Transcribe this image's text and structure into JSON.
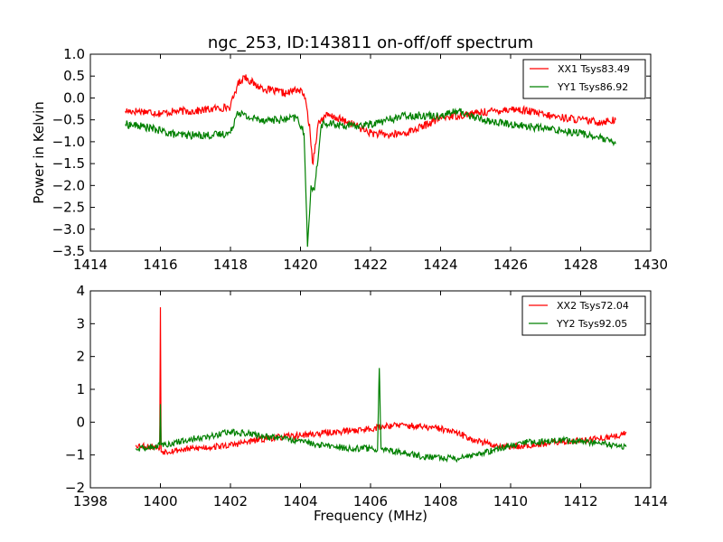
{
  "chart_data": [
    {
      "type": "line",
      "title": "ngc_253, ID:143811 on-off/off spectrum",
      "xlabel": "",
      "ylabel": "Power in Kelvin",
      "xlim": [
        1414,
        1430
      ],
      "ylim": [
        -3.5,
        1.0
      ],
      "xticks": [
        1414,
        1416,
        1418,
        1420,
        1422,
        1424,
        1426,
        1428,
        1430
      ],
      "yticks": [
        1.0,
        0.5,
        0.0,
        -0.5,
        -1.0,
        -1.5,
        -2.0,
        -2.5,
        -3.0,
        -3.5
      ],
      "xtick_labels": [
        "1414",
        "1416",
        "1418",
        "1420",
        "1422",
        "1424",
        "1426",
        "1428",
        "1430"
      ],
      "ytick_labels": [
        "1.0",
        "0.5",
        "0.0",
        "−0.5",
        "−1.0",
        "−1.5",
        "−2.0",
        "−2.5",
        "−3.0",
        "−3.5"
      ],
      "legend": "top-right",
      "series": [
        {
          "name": "XX1 Tsys83.49",
          "color": "#ff0000",
          "x": [
            1415.0,
            1415.5,
            1416.0,
            1416.5,
            1417.0,
            1417.5,
            1418.0,
            1418.2,
            1418.4,
            1418.7,
            1419.0,
            1419.3,
            1419.6,
            1419.9,
            1420.1,
            1420.25,
            1420.35,
            1420.5,
            1420.7,
            1421.0,
            1421.5,
            1422.0,
            1422.5,
            1423.0,
            1423.5,
            1424.0,
            1424.5,
            1425.0,
            1425.5,
            1426.0,
            1426.5,
            1427.0,
            1427.5,
            1428.0,
            1428.5,
            1429.0
          ],
          "values": [
            -0.3,
            -0.3,
            -0.35,
            -0.3,
            -0.3,
            -0.25,
            -0.2,
            0.3,
            0.5,
            0.3,
            0.2,
            0.15,
            0.1,
            0.2,
            0.1,
            -0.6,
            -1.5,
            -0.6,
            -0.4,
            -0.45,
            -0.6,
            -0.8,
            -0.85,
            -0.8,
            -0.65,
            -0.45,
            -0.4,
            -0.35,
            -0.3,
            -0.25,
            -0.3,
            -0.4,
            -0.45,
            -0.5,
            -0.55,
            -0.5
          ],
          "noise": 0.09
        },
        {
          "name": "YY1 Tsys86.92",
          "color": "#008000",
          "x": [
            1415.0,
            1415.5,
            1416.0,
            1416.5,
            1417.0,
            1417.5,
            1418.0,
            1418.2,
            1418.5,
            1419.0,
            1419.5,
            1419.9,
            1420.1,
            1420.2,
            1420.3,
            1420.4,
            1420.6,
            1421.0,
            1421.5,
            1422.0,
            1422.5,
            1423.0,
            1423.5,
            1424.0,
            1424.5,
            1425.0,
            1425.5,
            1426.0,
            1426.5,
            1427.0,
            1427.5,
            1428.0,
            1428.5,
            1429.0
          ],
          "values": [
            -0.6,
            -0.65,
            -0.75,
            -0.85,
            -0.85,
            -0.85,
            -0.8,
            -0.3,
            -0.45,
            -0.5,
            -0.5,
            -0.45,
            -0.8,
            -3.4,
            -2.0,
            -2.1,
            -0.6,
            -0.6,
            -0.65,
            -0.6,
            -0.5,
            -0.4,
            -0.4,
            -0.4,
            -0.3,
            -0.45,
            -0.55,
            -0.6,
            -0.65,
            -0.7,
            -0.75,
            -0.8,
            -0.9,
            -1.05
          ],
          "noise": 0.09
        }
      ]
    },
    {
      "type": "line",
      "title": "",
      "xlabel": "Frequency (MHz)",
      "ylabel": "",
      "xlim": [
        1398,
        1414
      ],
      "ylim": [
        -2,
        4
      ],
      "xticks": [
        1398,
        1400,
        1402,
        1404,
        1406,
        1408,
        1410,
        1412,
        1414
      ],
      "yticks": [
        4,
        3,
        2,
        1,
        0,
        -1,
        -2
      ],
      "xtick_labels": [
        "1398",
        "1400",
        "1402",
        "1404",
        "1406",
        "1408",
        "1410",
        "1412",
        "1414"
      ],
      "ytick_labels": [
        "4",
        "3",
        "2",
        "1",
        "0",
        "−1",
        "−2"
      ],
      "legend": "top-right",
      "series": [
        {
          "name": "XX2 Tsys72.04",
          "color": "#ff0000",
          "x": [
            1399.3,
            1399.8,
            1399.98,
            1400.0,
            1400.02,
            1400.5,
            1401.0,
            1401.5,
            1402.0,
            1402.5,
            1403.0,
            1403.5,
            1404.0,
            1404.5,
            1405.0,
            1405.5,
            1406.0,
            1406.5,
            1407.0,
            1407.5,
            1408.0,
            1408.5,
            1409.0,
            1409.5,
            1410.0,
            1410.5,
            1411.0,
            1411.5,
            1412.0,
            1412.5,
            1413.0,
            1413.3
          ],
          "values": [
            -0.7,
            -0.75,
            -0.8,
            3.5,
            -0.9,
            -0.85,
            -0.8,
            -0.75,
            -0.7,
            -0.6,
            -0.5,
            -0.45,
            -0.4,
            -0.35,
            -0.3,
            -0.25,
            -0.2,
            -0.1,
            -0.1,
            -0.15,
            -0.2,
            -0.35,
            -0.55,
            -0.7,
            -0.75,
            -0.7,
            -0.65,
            -0.6,
            -0.55,
            -0.5,
            -0.45,
            -0.3
          ],
          "noise": 0.1
        },
        {
          "name": "YY2 Tsys92.05",
          "color": "#008000",
          "x": [
            1399.3,
            1399.8,
            1399.98,
            1400.0,
            1400.02,
            1400.5,
            1401.0,
            1401.5,
            1402.0,
            1402.5,
            1403.0,
            1403.5,
            1404.0,
            1404.5,
            1405.0,
            1405.5,
            1406.0,
            1406.2,
            1406.25,
            1406.3,
            1406.5,
            1407.0,
            1407.5,
            1408.0,
            1408.5,
            1409.0,
            1409.5,
            1410.0,
            1410.5,
            1411.0,
            1411.5,
            1412.0,
            1412.5,
            1413.0,
            1413.3
          ],
          "values": [
            -0.8,
            -0.75,
            -0.7,
            0.55,
            -0.7,
            -0.6,
            -0.5,
            -0.4,
            -0.3,
            -0.35,
            -0.45,
            -0.5,
            -0.6,
            -0.7,
            -0.75,
            -0.8,
            -0.8,
            -0.85,
            1.65,
            -0.8,
            -0.85,
            -0.95,
            -1.05,
            -1.1,
            -1.1,
            -1.0,
            -0.85,
            -0.7,
            -0.6,
            -0.6,
            -0.55,
            -0.6,
            -0.65,
            -0.7,
            -0.75
          ],
          "noise": 0.1
        }
      ]
    }
  ]
}
